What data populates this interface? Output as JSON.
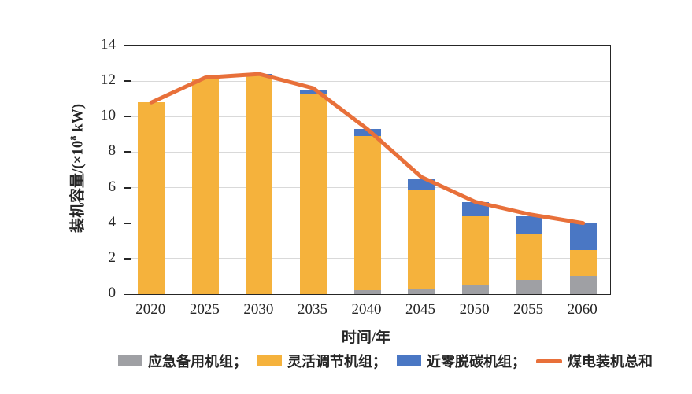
{
  "chart_data": {
    "type": "bar",
    "stacked": true,
    "title": "",
    "categories": [
      "2020",
      "2025",
      "2030",
      "2035",
      "2040",
      "2045",
      "2050",
      "2055",
      "2060"
    ],
    "series": [
      {
        "name": "应急备用机组",
        "type": "bar",
        "color": "#9fa0a4",
        "values": [
          0,
          0,
          0,
          0,
          0.2,
          0.3,
          0.5,
          0.8,
          1.0
        ]
      },
      {
        "name": "灵活调节机组",
        "type": "bar",
        "color": "#f5b23c",
        "values": [
          10.8,
          12.1,
          12.3,
          11.25,
          8.7,
          5.6,
          3.9,
          2.6,
          1.5
        ]
      },
      {
        "name": "近零脱碳机组",
        "type": "bar",
        "color": "#4a77c4",
        "values": [
          0,
          0.05,
          0.1,
          0.25,
          0.4,
          0.6,
          0.8,
          1.0,
          1.5
        ]
      },
      {
        "name": "煤电装机总和",
        "type": "line",
        "color": "#e8703a",
        "values": [
          10.8,
          12.2,
          12.4,
          11.6,
          9.3,
          6.6,
          5.2,
          4.5,
          4.0
        ]
      }
    ],
    "xlabel": "时间/年",
    "ylabel": "装机容量/(×10⁸ kW)",
    "ylim": [
      0,
      14
    ],
    "yticks": [
      0,
      2,
      4,
      6,
      8,
      10,
      12,
      14
    ],
    "grid": true,
    "legend_position": "bottom"
  },
  "axes": {
    "ylabel_prefix": "装机容量/(×10",
    "ylabel_sup": "8",
    "ylabel_suffix": " kW)",
    "xlabel": "时间/年"
  },
  "legend": {
    "items": [
      {
        "label": "应急备用机组；",
        "swatch": "bar",
        "color": "#9fa0a4"
      },
      {
        "label": "灵活调节机组；",
        "swatch": "bar",
        "color": "#f5b23c"
      },
      {
        "label": "近零脱碳机组；",
        "swatch": "bar",
        "color": "#4a77c4"
      },
      {
        "label": "煤电装机总和",
        "swatch": "line",
        "color": "#e8703a"
      }
    ]
  },
  "colors": {
    "grid": "#d9d9d9",
    "axis": "#262626",
    "text": "#262626",
    "background": "#ffffff"
  }
}
